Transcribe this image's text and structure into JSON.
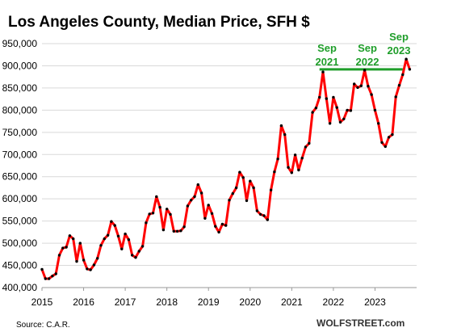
{
  "chart_data": {
    "type": "line",
    "title": "Los Angeles County, Median Price, SFH $",
    "ylim": [
      400000,
      950000
    ],
    "yticks": [
      400000,
      450000,
      500000,
      550000,
      600000,
      650000,
      700000,
      750000,
      800000,
      850000,
      900000,
      950000
    ],
    "ytick_labels": [
      "400,000",
      "450,000",
      "500,000",
      "550,000",
      "600,000",
      "650,000",
      "700,000",
      "750,000",
      "800,000",
      "850,000",
      "900,000",
      "950,000"
    ],
    "xlim": [
      2015,
      2024
    ],
    "xtick_labels": [
      "2015",
      "2016",
      "2017",
      "2018",
      "2019",
      "2020",
      "2021",
      "2022",
      "2023"
    ],
    "grid": "horizontal",
    "series": [
      {
        "color": "#ff0000",
        "marker_color": "#000000",
        "start": "2015-01",
        "frequency": "monthly",
        "values": [
          441000,
          420000,
          420000,
          426000,
          431000,
          473000,
          489000,
          491000,
          517000,
          510000,
          459000,
          500000,
          462000,
          442000,
          440000,
          451000,
          466000,
          495000,
          510000,
          518000,
          549000,
          540000,
          516000,
          487000,
          521000,
          508000,
          473000,
          468000,
          482000,
          493000,
          546000,
          566000,
          568000,
          605000,
          581000,
          530000,
          577000,
          565000,
          527000,
          527000,
          528000,
          537000,
          584000,
          597000,
          605000,
          632000,
          613000,
          556000,
          586000,
          567000,
          538000,
          525000,
          543000,
          540000,
          597000,
          612000,
          625000,
          660000,
          648000,
          596000,
          640000,
          625000,
          573000,
          565000,
          562000,
          553000,
          620000,
          661000,
          690000,
          765000,
          745000,
          671000,
          659000,
          699000,
          665000,
          692000,
          717000,
          725000,
          795000,
          805000,
          829000,
          886000,
          826000,
          770000,
          829000,
          806000,
          773000,
          780000,
          800000,
          799000,
          859000,
          851000,
          855000,
          890000,
          854000,
          835000,
          800000,
          770000,
          727000,
          718000,
          739000,
          745000,
          830000,
          856000,
          880000,
          915000,
          892000
        ]
      }
    ],
    "annotations": [
      {
        "lines": [
          "Sep",
          "2021"
        ]
      },
      {
        "lines": [
          "Sep",
          "2022"
        ]
      },
      {
        "lines": [
          "Sep",
          "2023"
        ]
      }
    ],
    "reference_line": {
      "value": 892000,
      "from": "2021-09",
      "to": "2023-09",
      "color": "#1f9e2a"
    },
    "source": "Source: C.A.R.",
    "watermark": "WOLFSTREET.com"
  }
}
